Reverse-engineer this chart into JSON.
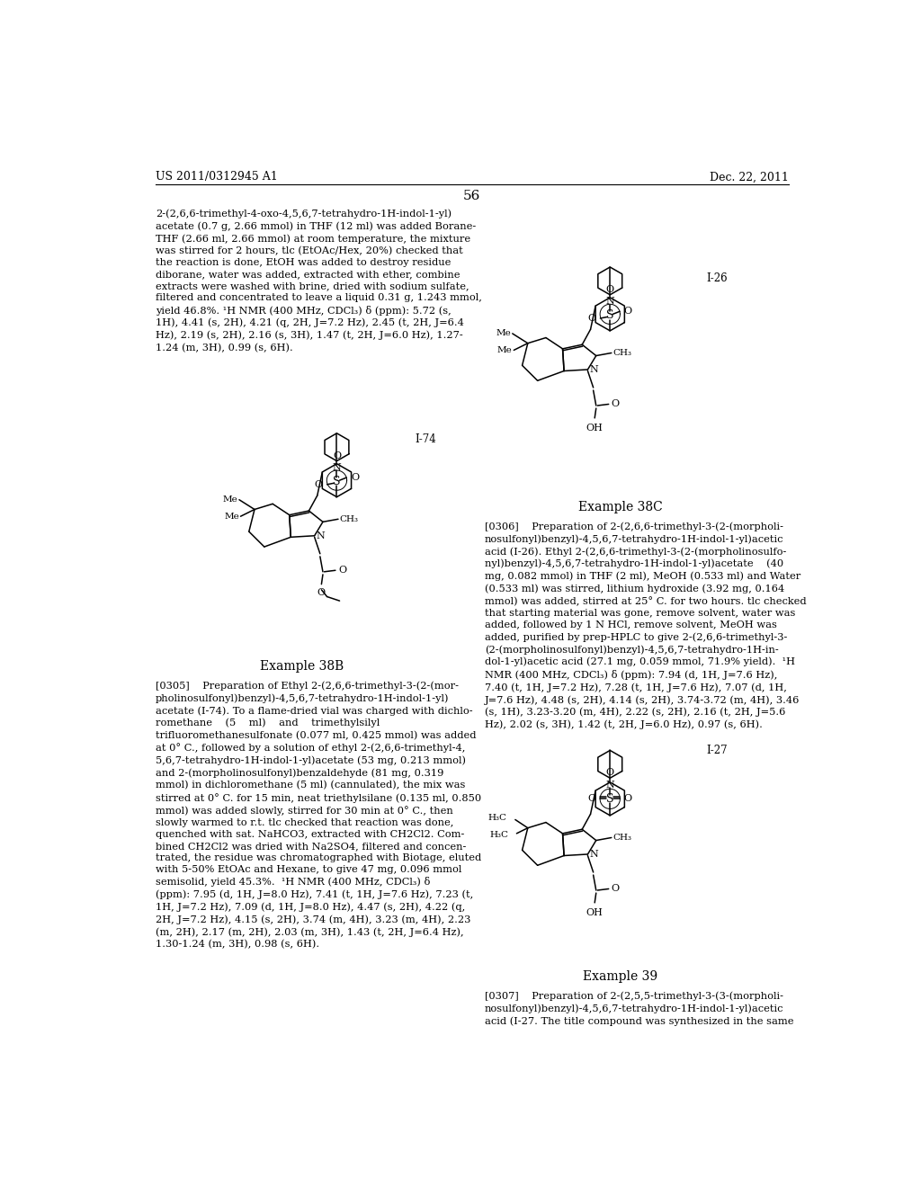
{
  "background_color": "#ffffff",
  "header_left": "US 2011/0312945 A1",
  "header_right": "Dec. 22, 2011",
  "page_number": "56",
  "body_text_col1": "2-(2,6,6-trimethyl-4-oxo-4,5,6,7-tetrahydro-1H-indol-1-yl)\nacetate (0.7 g, 2.66 mmol) in THF (12 ml) was added Borane-\nTHF (2.66 ml, 2.66 mmol) at room temperature, the mixture\nwas stirred for 2 hours, tlc (EtOAc/Hex, 20%) checked that\nthe reaction is done, EtOH was added to destroy residue\ndiborane, water was added, extracted with ether, combine\nextracts were washed with brine, dried with sodium sulfate,\nfiltered and concentrated to leave a liquid 0.31 g, 1.243 mmol,\nyield 46.8%. ¹H NMR (400 MHz, CDCl₃) δ (ppm): 5.72 (s,\n1H), 4.41 (s, 2H), 4.21 (q, 2H, J=7.2 Hz), 2.45 (t, 2H, J=6.4\nHz), 2.19 (s, 2H), 2.16 (s, 3H), 1.47 (t, 2H, J=6.0 Hz), 1.27-\n1.24 (m, 3H), 0.99 (s, 6H).",
  "label_I74": "I-74",
  "label_example38b": "Example 38B",
  "body_text_38b": "[0305]    Preparation of Ethyl 2-(2,6,6-trimethyl-3-(2-(mor-\npholinosulfonyl)benzyl)-4,5,6,7-tetrahydro-1H-indol-1-yl)\nacetate (I-74). To a flame-dried vial was charged with dichlo-\nromethane    (5    ml)    and    trimethylsilyl\ntrifluoromethanesulfonate (0.077 ml, 0.425 mmol) was added\nat 0° C., followed by a solution of ethyl 2-(2,6,6-trimethyl-4,\n5,6,7-tetrahydro-1H-indol-1-yl)acetate (53 mg, 0.213 mmol)\nand 2-(morpholinosulfonyl)benzaldehyde (81 mg, 0.319\nmmol) in dichloromethane (5 ml) (cannulated), the mix was\nstirred at 0° C. for 15 min, neat triethylsilane (0.135 ml, 0.850\nmmol) was added slowly, stirred for 30 min at 0° C., then\nslowly warmed to r.t. tlc checked that reaction was done,\nquenched with sat. NaHCO3, extracted with CH2Cl2. Com-\nbined CH2Cl2 was dried with Na2SO4, filtered and concen-\ntrated, the residue was chromatographed with Biotage, eluted\nwith 5-50% EtOAc and Hexane, to give 47 mg, 0.096 mmol\nsemisolid, yield 45.3%.  ¹H NMR (400 MHz, CDCl₃) δ\n(ppm): 7.95 (d, 1H, J=8.0 Hz), 7.41 (t, 1H, J=7.6 Hz), 7.23 (t,\n1H, J=7.2 Hz), 7.09 (d, 1H, J=8.0 Hz), 4.47 (s, 2H), 4.22 (q,\n2H, J=7.2 Hz), 4.15 (s, 2H), 3.74 (m, 4H), 3.23 (m, 4H), 2.23\n(m, 2H), 2.17 (m, 2H), 2.03 (m, 3H), 1.43 (t, 2H, J=6.4 Hz),\n1.30-1.24 (m, 3H), 0.98 (s, 6H).",
  "label_I26": "I-26",
  "label_example38c": "Example 38C",
  "body_text_38c": "[0306]    Preparation of 2-(2,6,6-trimethyl-3-(2-(morpholi-\nnosulfonyl)benzyl)-4,5,6,7-tetrahydro-1H-indol-1-yl)acetic\nacid (I-26). Ethyl 2-(2,6,6-trimethyl-3-(2-(morpholinosulfo-\nnyl)benzyl)-4,5,6,7-tetrahydro-1H-indol-1-yl)acetate    (40\nmg, 0.082 mmol) in THF (2 ml), MeOH (0.533 ml) and Water\n(0.533 ml) was stirred, lithium hydroxide (3.92 mg, 0.164\nmmol) was added, stirred at 25° C. for two hours. tlc checked\nthat starting material was gone, remove solvent, water was\nadded, followed by 1 N HCl, remove solvent, MeOH was\nadded, purified by prep-HPLC to give 2-(2,6,6-trimethyl-3-\n(2-(morpholinosulfonyl)benzyl)-4,5,6,7-tetrahydro-1H-in-\ndol-1-yl)acetic acid (27.1 mg, 0.059 mmol, 71.9% yield).  ¹H\nNMR (400 MHz, CDCl₃) δ (ppm): 7.94 (d, 1H, J=7.6 Hz),\n7.40 (t, 1H, J=7.2 Hz), 7.28 (t, 1H, J=7.6 Hz), 7.07 (d, 1H,\nJ=7.6 Hz), 4.48 (s, 2H), 4.14 (s, 2H), 3.74-3.72 (m, 4H), 3.46\n(s, 1H), 3.23-3.20 (m, 4H), 2.22 (s, 2H), 2.16 (t, 2H, J=5.6\nHz), 2.02 (s, 3H), 1.42 (t, 2H, J=6.0 Hz), 0.97 (s, 6H).",
  "label_I27": "I-27",
  "label_example39": "Example 39",
  "body_text_39": "[0307]    Preparation of 2-(2,5,5-trimethyl-3-(3-(morpholi-\nnosulfonyl)benzyl)-4,5,6,7-tetrahydro-1H-indol-1-yl)acetic\nacid (I-27. The title compound was synthesized in the same"
}
